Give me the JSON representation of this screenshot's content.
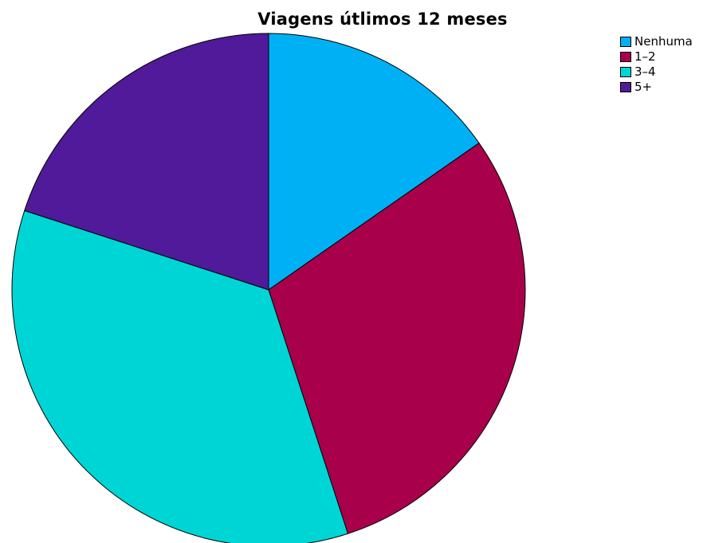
{
  "chart_data": {
    "type": "pie",
    "title": "Viagens útlimos 12 meses",
    "categories": [
      "Nenhuma",
      "1–2",
      "3–4",
      "5+"
    ],
    "values": [
      15.3,
      29.7,
      35.0,
      20.0
    ],
    "colors": [
      "#00b0f5",
      "#a8004a",
      "#00d5d5",
      "#501a9a"
    ],
    "legend_position": "top-right",
    "start_angle": "12 o'clock",
    "direction": "clockwise"
  }
}
